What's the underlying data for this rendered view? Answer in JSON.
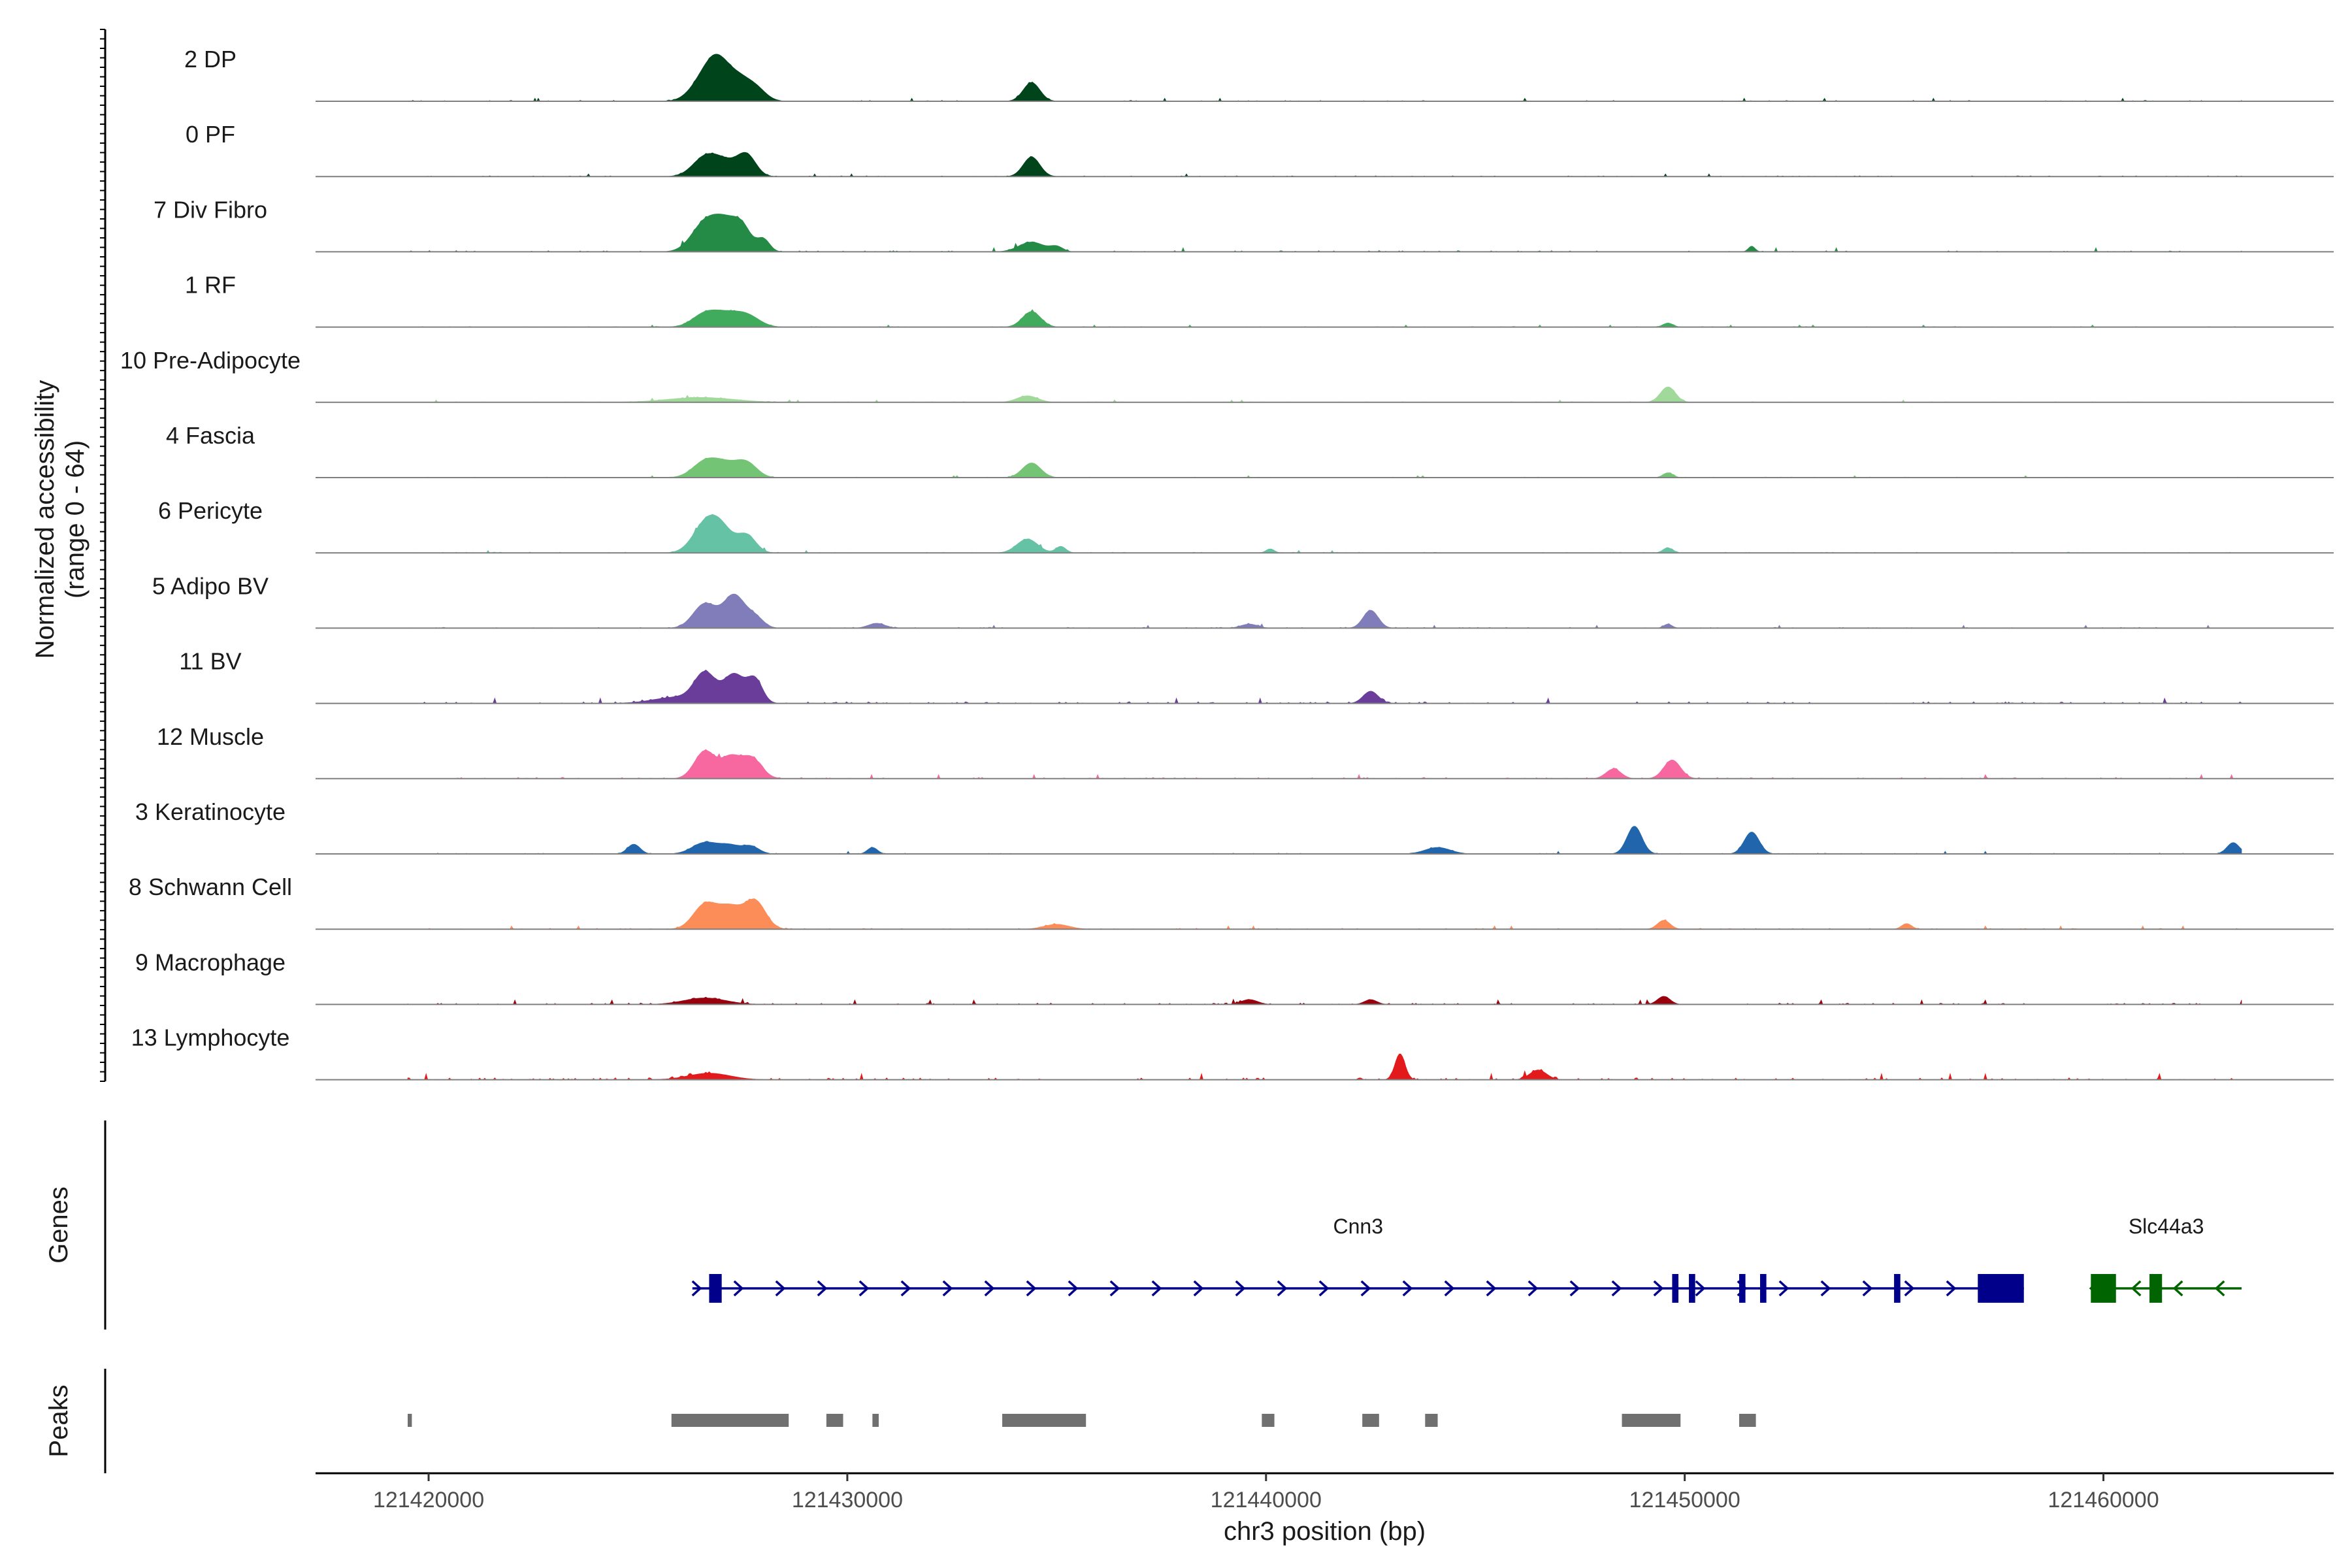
{
  "chart_data": {
    "type": "area",
    "title": "",
    "chromosome": "chr3",
    "xlabel": "chr3 position (bp)",
    "ylabel_line1": "Normalized accessibility",
    "ylabel_line2": "(range 0 - 64)",
    "xlim": [
      121417300,
      121465500
    ],
    "ylim": [
      0,
      64
    ],
    "x_ticks": [
      121420000,
      121430000,
      121440000,
      121450000,
      121460000
    ],
    "x_tick_labels": [
      "121420000",
      "121430000",
      "121440000",
      "121450000",
      "121460000"
    ],
    "track_start": 121419500,
    "track_end": 121463300,
    "series": [
      {
        "name": "2 DP",
        "color": "#00441b",
        "noise": 1.5,
        "peaks": [
          [
            121426600,
            0.32,
            28
          ],
          [
            121426900,
            0.25,
            18
          ],
          [
            121427000,
            0.3,
            20
          ],
          [
            121427400,
            0.25,
            20
          ],
          [
            121427800,
            0.25,
            16
          ],
          [
            121434400,
            0.2,
            23
          ]
        ]
      },
      {
        "name": "0 PF",
        "color": "#00441b",
        "noise": 1.3,
        "peaks": [
          [
            121426600,
            0.3,
            23
          ],
          [
            121427100,
            0.3,
            16
          ],
          [
            121427600,
            0.22,
            25
          ],
          [
            121434400,
            0.2,
            24
          ]
        ]
      },
      {
        "name": "7 Div Fibro",
        "color": "#238b45",
        "noise": 2.0,
        "peaks": [
          [
            121426600,
            0.32,
            35
          ],
          [
            121427100,
            0.28,
            30
          ],
          [
            121427500,
            0.22,
            26
          ],
          [
            121428000,
            0.15,
            15
          ],
          [
            121434400,
            0.3,
            12
          ],
          [
            121435000,
            0.15,
            6
          ],
          [
            121451600,
            0.08,
            7
          ]
        ]
      },
      {
        "name": "1 RF",
        "color": "#41ab5d",
        "noise": 1.0,
        "peaks": [
          [
            121426600,
            0.3,
            16
          ],
          [
            121427100,
            0.3,
            13
          ],
          [
            121427600,
            0.3,
            14
          ],
          [
            121434400,
            0.22,
            19
          ],
          [
            121449600,
            0.12,
            5
          ]
        ]
      },
      {
        "name": "10 Pre-Adipocyte",
        "color": "#a1d99b",
        "noise": 1.2,
        "peaks": [
          [
            121426500,
            0.8,
            6
          ],
          [
            121434300,
            0.25,
            8
          ],
          [
            121449600,
            0.18,
            19
          ]
        ]
      },
      {
        "name": "4 Fascia",
        "color": "#74c476",
        "noise": 1.0,
        "peaks": [
          [
            121426600,
            0.3,
            19
          ],
          [
            121427100,
            0.3,
            15
          ],
          [
            121427600,
            0.25,
            17
          ],
          [
            121434400,
            0.22,
            18
          ],
          [
            121449600,
            0.12,
            6
          ]
        ]
      },
      {
        "name": "6 Pericyte",
        "color": "#66c2a4",
        "noise": 1.2,
        "peaks": [
          [
            121426600,
            0.3,
            33
          ],
          [
            121427000,
            0.28,
            26
          ],
          [
            121427600,
            0.22,
            21
          ],
          [
            121434300,
            0.25,
            17
          ],
          [
            121435100,
            0.12,
            8
          ],
          [
            121440100,
            0.1,
            5
          ],
          [
            121449600,
            0.12,
            6
          ]
        ]
      },
      {
        "name": "5 Adipo BV",
        "color": "#807dba",
        "noise": 1.4,
        "peaks": [
          [
            121426600,
            0.28,
            30
          ],
          [
            121427300,
            0.25,
            40
          ],
          [
            121427800,
            0.2,
            13
          ],
          [
            121442500,
            0.18,
            22
          ],
          [
            121439600,
            0.2,
            5
          ],
          [
            121449600,
            0.1,
            5
          ],
          [
            121430700,
            0.2,
            6
          ]
        ]
      },
      {
        "name": "11 BV",
        "color": "#6a3d9a",
        "noise": 2.6,
        "peaks": [
          [
            121426600,
            0.25,
            34
          ],
          [
            121427300,
            0.25,
            35
          ],
          [
            121427800,
            0.18,
            28
          ],
          [
            121426000,
            0.6,
            8
          ],
          [
            121442500,
            0.18,
            15
          ]
        ]
      },
      {
        "name": "12 Muscle",
        "color": "#f768a1",
        "noise": 2.0,
        "peaks": [
          [
            121426600,
            0.25,
            34
          ],
          [
            121427200,
            0.22,
            24
          ],
          [
            121427700,
            0.25,
            26
          ],
          [
            121449700,
            0.2,
            23
          ],
          [
            121448300,
            0.18,
            12
          ]
        ]
      },
      {
        "name": "3 Keratinocyte",
        "color": "#2166ac",
        "noise": 1.3,
        "peaks": [
          [
            121426600,
            0.3,
            14
          ],
          [
            121427200,
            0.25,
            10
          ],
          [
            121427700,
            0.2,
            9
          ],
          [
            121424900,
            0.15,
            12
          ],
          [
            121448800,
            0.18,
            34
          ],
          [
            121451600,
            0.18,
            27
          ],
          [
            121463100,
            0.15,
            14
          ],
          [
            121444100,
            0.3,
            8
          ],
          [
            121430600,
            0.12,
            8
          ]
        ]
      },
      {
        "name": "8 Schwann Cell",
        "color": "#fc8d59",
        "noise": 1.6,
        "peaks": [
          [
            121426600,
            0.28,
            30
          ],
          [
            121427200,
            0.28,
            26
          ],
          [
            121427800,
            0.25,
            34
          ],
          [
            121449500,
            0.15,
            11
          ],
          [
            121435000,
            0.3,
            6
          ],
          [
            121455300,
            0.12,
            7
          ]
        ]
      },
      {
        "name": "9 Macrophage",
        "color": "#99000d",
        "noise": 2.2,
        "peaks": [
          [
            121426600,
            0.5,
            8
          ],
          [
            121449500,
            0.15,
            10
          ],
          [
            121439600,
            0.2,
            6
          ],
          [
            121442500,
            0.15,
            6
          ]
        ]
      },
      {
        "name": "13 Lymphocyte",
        "color": "#e31a1c",
        "noise": 3.0,
        "peaks": [
          [
            121443200,
            0.12,
            32
          ],
          [
            121426700,
            0.5,
            8
          ],
          [
            121446500,
            0.2,
            12
          ]
        ]
      }
    ],
    "genes_label": "Genes",
    "genes": [
      {
        "name": "Cnn3",
        "strand": "+",
        "color": "#00008b",
        "start": 121426300,
        "end": 121458100,
        "exons": [
          [
            121426700,
            121427000
          ],
          [
            121449700,
            121449850
          ],
          [
            121450100,
            121450250
          ],
          [
            121451300,
            121451450
          ],
          [
            121451800,
            121451950
          ],
          [
            121455000,
            121455150
          ],
          [
            121457000,
            121458100
          ]
        ]
      },
      {
        "name": "Slc44a3",
        "strand": "-",
        "color": "#006400",
        "start": 121459700,
        "end": 121463300,
        "exons": [
          [
            121459700,
            121460300
          ],
          [
            121461100,
            121461400
          ]
        ]
      }
    ],
    "peaks_label": "Peaks",
    "peak_color": "#707070",
    "peak_regions": [
      [
        121419500,
        121419600
      ],
      [
        121425800,
        121428600
      ],
      [
        121429500,
        121429900
      ],
      [
        121430600,
        121430750
      ],
      [
        121433700,
        121435700
      ],
      [
        121439900,
        121440200
      ],
      [
        121442300,
        121442700
      ],
      [
        121443800,
        121444100
      ],
      [
        121448500,
        121449900
      ],
      [
        121451300,
        121451700
      ]
    ]
  }
}
